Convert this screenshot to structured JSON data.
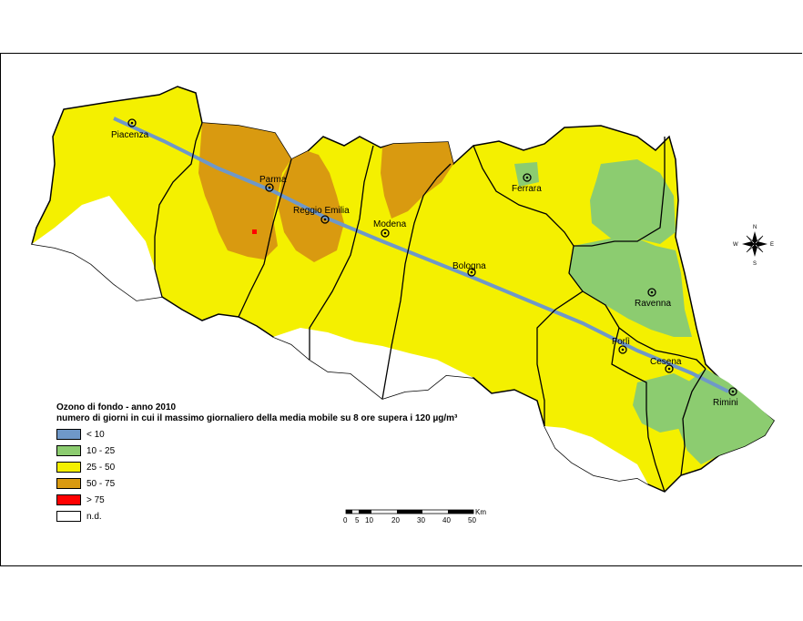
{
  "legend": {
    "title": "Ozono di fondo - anno 2010",
    "subtitle": "numero di giorni in cui il massimo giornaliero della media mobile su 8 ore supera i 120 µg/m³",
    "classes": [
      {
        "label": "< 10",
        "color": "#6f98c8"
      },
      {
        "label": "10 - 25",
        "color": "#8ccc70"
      },
      {
        "label": "25 - 50",
        "color": "#f4f000"
      },
      {
        "label": "50 - 75",
        "color": "#d99a10"
      },
      {
        "label": "> 75",
        "color": "#ff0000"
      },
      {
        "label": "n.d.",
        "color": "#ffffff"
      }
    ]
  },
  "cities": [
    "Piacenza",
    "Parma",
    "Reggio Emilia",
    "Modena",
    "Ferrara",
    "Bologna",
    "Ravenna",
    "Forlì",
    "Cesena",
    "Rimini"
  ],
  "compass": {
    "n": "N",
    "s": "S",
    "e": "E",
    "w": "W"
  },
  "scale": {
    "unit": "Km",
    "ticks": [
      "0",
      "5",
      "10",
      "20",
      "30",
      "40",
      "50"
    ]
  }
}
